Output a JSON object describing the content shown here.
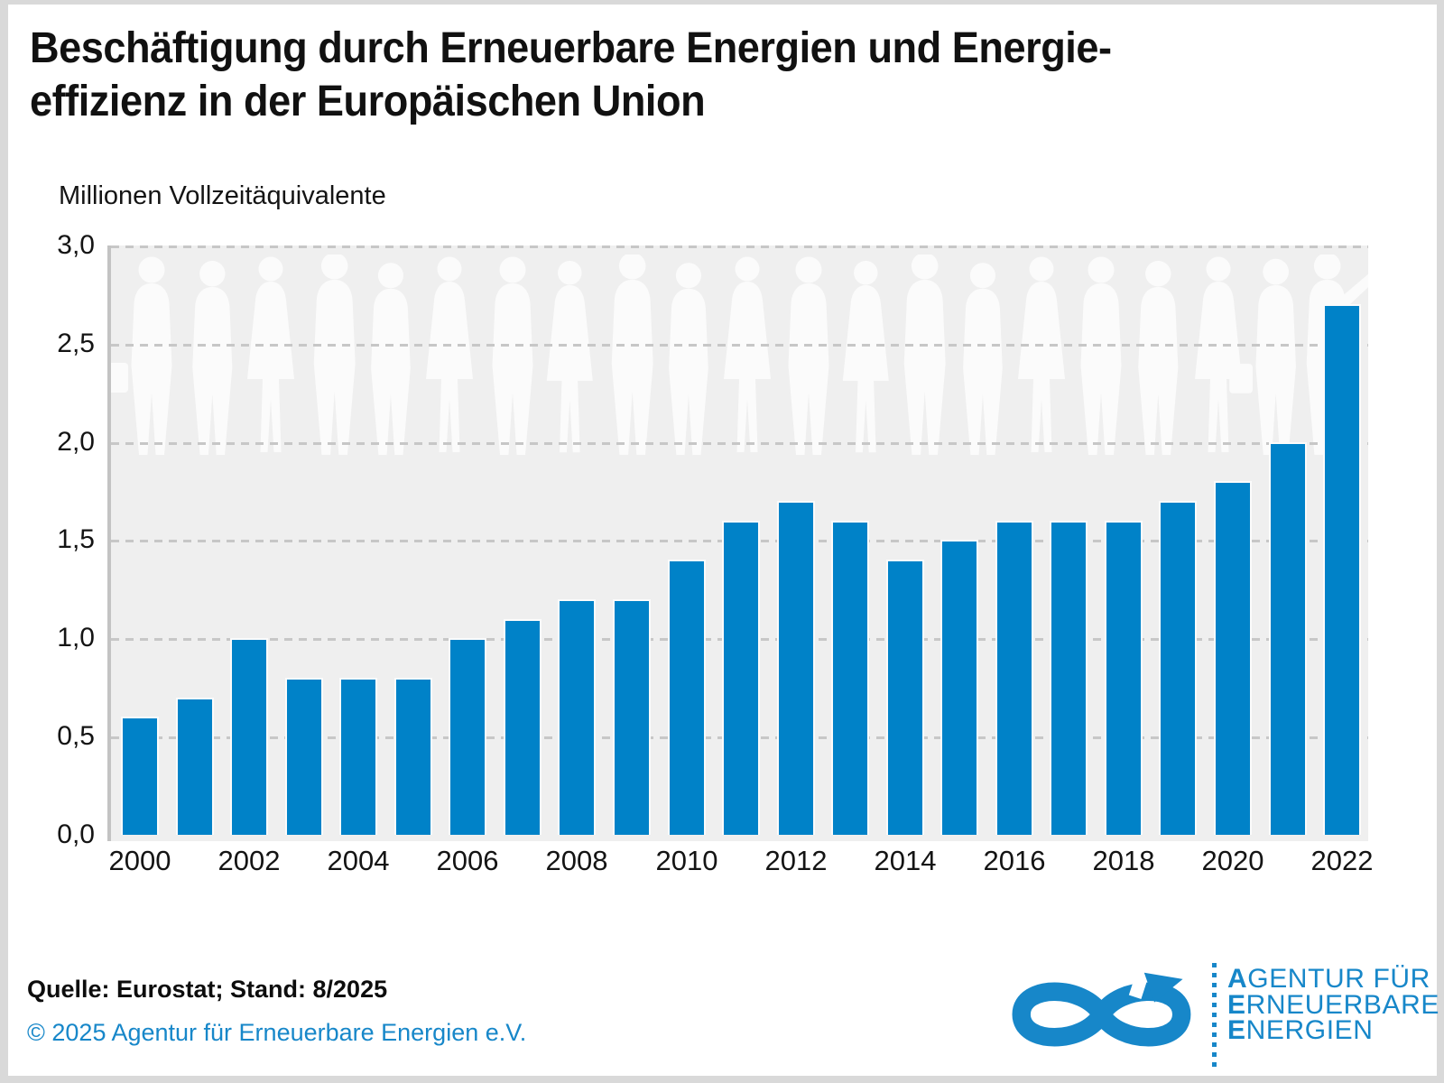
{
  "title": {
    "line1": "Beschäftigung durch Erneuerbare Energien und Energie-",
    "line2": "effizienz in der Europäischen Union"
  },
  "axis_unit_label": "Millionen Vollzeitäquivalente",
  "footer": {
    "source": "Quelle: Eurostat; Stand: 8/2025",
    "copyright": "© 2025 Agentur für Erneuerbare Energien e.V."
  },
  "logo": {
    "lines": [
      {
        "lead": "A",
        "rest": "GENTUR FÜR"
      },
      {
        "lead": "E",
        "rest": "RNEUERBARE"
      },
      {
        "lead": "E",
        "rest": "NERGIEN"
      }
    ]
  },
  "colors": {
    "bar_blue": "#0082c8",
    "logo_blue": "#1787c9",
    "plot_background": "#efefef",
    "gridline_gray": "#c7c7c7",
    "silhouette_white": "#fbfbfb",
    "page_frame_gray": "#d9d9d9"
  },
  "chart_data": {
    "type": "bar",
    "title": "Beschäftigung durch Erneuerbare Energien und Energieeffizienz in der Europäischen Union",
    "ylabel": "Millionen Vollzeitäquivalente",
    "xlabel": "",
    "categories": [
      "2000",
      "2001",
      "2002",
      "2003",
      "2004",
      "2005",
      "2006",
      "2007",
      "2008",
      "2009",
      "2010",
      "2011",
      "2012",
      "2013",
      "2014",
      "2015",
      "2016",
      "2017",
      "2018",
      "2019",
      "2020",
      "2021",
      "2022"
    ],
    "values": [
      0.6,
      0.7,
      1.0,
      0.8,
      0.8,
      0.8,
      1.0,
      1.1,
      1.2,
      1.2,
      1.4,
      1.6,
      1.7,
      1.6,
      1.4,
      1.5,
      1.6,
      1.6,
      1.6,
      1.7,
      1.8,
      2.0,
      2.7
    ],
    "ylim": [
      0.0,
      3.0
    ],
    "ytick_step": 0.5,
    "ytick_labels": [
      "0,0",
      "0,5",
      "1,0",
      "1,5",
      "2,0",
      "2,5",
      "3,0"
    ],
    "xtick_labels": [
      "2000",
      "2002",
      "2004",
      "2006",
      "2008",
      "2010",
      "2012",
      "2014",
      "2016",
      "2018",
      "2020",
      "2022"
    ],
    "grid": "horizontal dashed, on",
    "legend": "none",
    "source": "Eurostat; Stand: 8/2025"
  }
}
